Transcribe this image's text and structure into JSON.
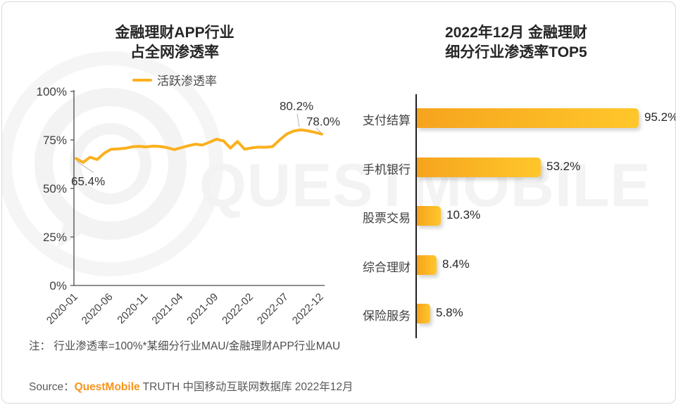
{
  "page": {
    "note": "注： 行业渗透率=100%*某细分行业MAU/金融理财APP行业MAU",
    "source_prefix": "Source：",
    "source_brand": "QuestMobile",
    "source_suffix": " TRUTH 中国移动互联网数据库 2022年12月",
    "watermark": "QUESTMOBILE"
  },
  "colors": {
    "line": "#FBB01E",
    "bar_gradient_from": "#F6A41D",
    "bar_gradient_to": "#FFC72B",
    "brand_orange": "#F7941D",
    "watermark_gray": "#F3F3F3",
    "axis_dark": "#4a4a4a",
    "leader_gray": "#b3b3b3"
  },
  "left_chart": {
    "title_line1": "金融理财APP行业",
    "title_line2": "占全网渗透率",
    "legend_label": "活跃渗透率"
  },
  "right_chart": {
    "title_line1": "2022年12月 金融理财",
    "title_line2": "细分行业渗透率TOP5"
  },
  "chart_data": [
    {
      "type": "line",
      "title": "金融理财APP行业占全网渗透率",
      "series_name": "活跃渗透率",
      "x": [
        "2020-01",
        "2020-02",
        "2020-03",
        "2020-04",
        "2020-05",
        "2020-06",
        "2020-07",
        "2020-08",
        "2020-09",
        "2020-10",
        "2020-11",
        "2020-12",
        "2021-01",
        "2021-02",
        "2021-03",
        "2021-04",
        "2021-05",
        "2021-06",
        "2021-07",
        "2021-08",
        "2021-09",
        "2021-10",
        "2021-11",
        "2021-12",
        "2022-01",
        "2022-02",
        "2022-03",
        "2022-04",
        "2022-05",
        "2022-06",
        "2022-07",
        "2022-08",
        "2022-09",
        "2022-10",
        "2022-11",
        "2022-12"
      ],
      "values": [
        65.4,
        63.4,
        66.1,
        64.9,
        68.1,
        70.2,
        70.4,
        70.7,
        71.5,
        71.7,
        71.4,
        71.8,
        71.6,
        71.0,
        70.0,
        71.0,
        72.0,
        72.8,
        72.4,
        73.8,
        75.4,
        74.5,
        70.8,
        74.2,
        70.2,
        70.9,
        71.3,
        71.2,
        71.6,
        75.0,
        78.0,
        79.6,
        80.2,
        79.7,
        78.9,
        78.0
      ],
      "ylim": [
        0,
        100
      ],
      "grid": false,
      "legend_position": "top",
      "y_ticks": [
        {
          "label": "100%",
          "value": 100
        },
        {
          "label": "75%",
          "value": 75
        },
        {
          "label": "50%",
          "value": 50
        },
        {
          "label": "25%",
          "value": 25
        },
        {
          "label": "0%",
          "value": 0
        }
      ],
      "x_ticks": [
        {
          "index": 0,
          "label": "2020-01"
        },
        {
          "index": 5,
          "label": "2020-06"
        },
        {
          "index": 10,
          "label": "2020-11"
        },
        {
          "index": 15,
          "label": "2021-04"
        },
        {
          "index": 20,
          "label": "2021-09"
        },
        {
          "index": 25,
          "label": "2022-02"
        },
        {
          "index": 30,
          "label": "2022-07"
        },
        {
          "index": 35,
          "label": "2022-12"
        }
      ],
      "annotations": [
        {
          "index": 0,
          "label": "65.4%",
          "pos": "start-below"
        },
        {
          "index": 32,
          "label": "80.2%",
          "pos": "peak-above"
        },
        {
          "index": 35,
          "label": "78.0%",
          "pos": "end-above"
        }
      ]
    },
    {
      "type": "bar",
      "title": "2022年12月 金融理财细分行业渗透率TOP5",
      "orientation": "horizontal",
      "categories": [
        "支付结算",
        "手机银行",
        "股票交易",
        "综合理财",
        "保险服务"
      ],
      "values": [
        95.2,
        53.2,
        10.3,
        8.4,
        5.8
      ],
      "value_labels": [
        "95.2%",
        "53.2%",
        "10.3%",
        "8.4%",
        "5.8%"
      ],
      "xlim": [
        0,
        100
      ]
    }
  ]
}
